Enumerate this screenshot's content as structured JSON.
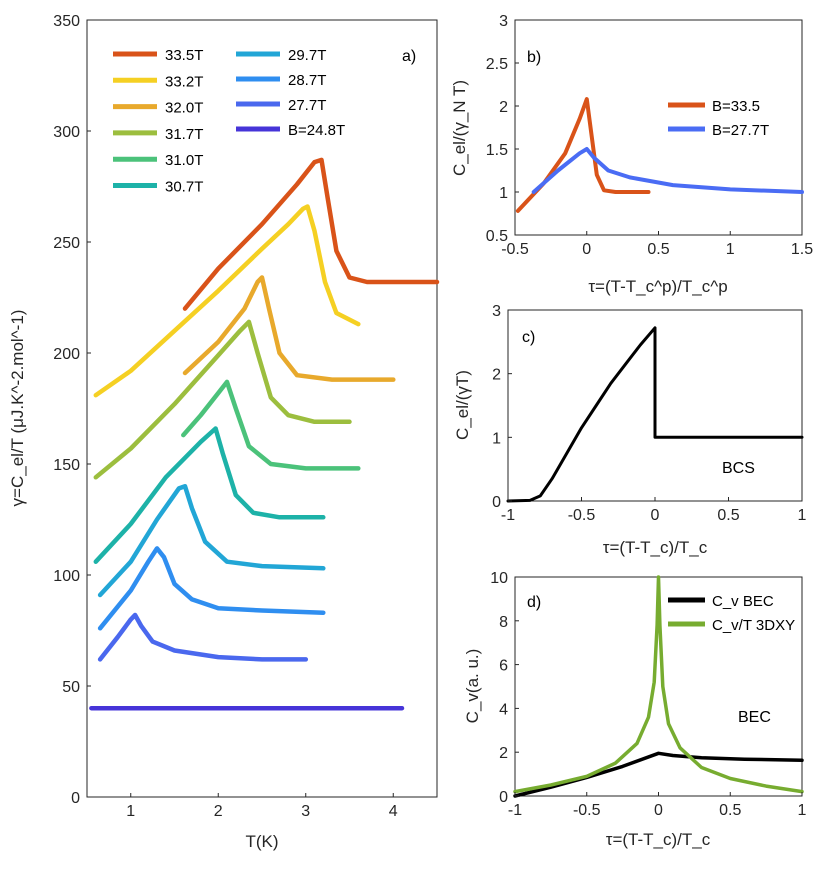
{
  "chart_data": [
    {
      "id": "a",
      "type": "line",
      "panel_label": "a)",
      "xlabel": "T(K)",
      "ylabel": "γ=C_el/T (μJ.K^-2.mol^-1)",
      "xlim": [
        0.5,
        4.5
      ],
      "ylim": [
        0,
        350
      ],
      "xticks": [
        1,
        2,
        3,
        4
      ],
      "yticks": [
        0,
        50,
        100,
        150,
        200,
        250,
        300,
        350
      ],
      "series": [
        {
          "name": "33.5T",
          "color": "#d95319",
          "points": [
            [
              1.62,
              220
            ],
            [
              2.0,
              238
            ],
            [
              2.5,
              258
            ],
            [
              2.9,
              276
            ],
            [
              3.1,
              286
            ],
            [
              3.18,
              287
            ],
            [
              3.25,
              270
            ],
            [
              3.35,
              246
            ],
            [
              3.5,
              234
            ],
            [
              3.7,
              232
            ],
            [
              4.0,
              232
            ],
            [
              4.5,
              232
            ]
          ]
        },
        {
          "name": "33.2T",
          "color": "#f5d023",
          "points": [
            [
              0.6,
              181
            ],
            [
              1.0,
              192
            ],
            [
              1.5,
              210
            ],
            [
              2.0,
              228
            ],
            [
              2.5,
              247
            ],
            [
              2.8,
              258
            ],
            [
              2.97,
              265
            ],
            [
              3.02,
              266
            ],
            [
              3.1,
              255
            ],
            [
              3.22,
              232
            ],
            [
              3.35,
              218
            ],
            [
              3.6,
              213
            ]
          ]
        },
        {
          "name": "32.0T",
          "color": "#e8a92c",
          "points": [
            [
              1.62,
              191
            ],
            [
              2.0,
              205
            ],
            [
              2.3,
              220
            ],
            [
              2.45,
              232
            ],
            [
              2.5,
              234
            ],
            [
              2.58,
              220
            ],
            [
              2.7,
              200
            ],
            [
              2.9,
              190
            ],
            [
              3.3,
              188
            ],
            [
              3.7,
              188
            ],
            [
              4.0,
              188
            ]
          ]
        },
        {
          "name": "31.7T",
          "color": "#9cbe3e",
          "points": [
            [
              0.6,
              144
            ],
            [
              1.0,
              157
            ],
            [
              1.5,
              177
            ],
            [
              2.0,
              199
            ],
            [
              2.25,
              210
            ],
            [
              2.35,
              214
            ],
            [
              2.45,
              200
            ],
            [
              2.6,
              180
            ],
            [
              2.8,
              172
            ],
            [
              3.1,
              169
            ],
            [
              3.5,
              169
            ]
          ]
        },
        {
          "name": "31.0T",
          "color": "#4bc27a",
          "points": [
            [
              1.6,
              163
            ],
            [
              1.8,
              172
            ],
            [
              2.0,
              182
            ],
            [
              2.1,
              187
            ],
            [
              2.2,
              175
            ],
            [
              2.35,
              158
            ],
            [
              2.6,
              150
            ],
            [
              3.0,
              148
            ],
            [
              3.6,
              148
            ]
          ]
        },
        {
          "name": "30.7T",
          "color": "#1db2a8",
          "points": [
            [
              0.6,
              106
            ],
            [
              1.0,
              123
            ],
            [
              1.4,
              144
            ],
            [
              1.8,
              160
            ],
            [
              1.97,
              166
            ],
            [
              2.05,
              155
            ],
            [
              2.2,
              136
            ],
            [
              2.4,
              128
            ],
            [
              2.7,
              126
            ],
            [
              3.2,
              126
            ]
          ]
        },
        {
          "name": "29.7T",
          "color": "#22a6d6",
          "points": [
            [
              0.65,
              91
            ],
            [
              1.0,
              106
            ],
            [
              1.3,
              125
            ],
            [
              1.55,
              139
            ],
            [
              1.62,
              140
            ],
            [
              1.7,
              130
            ],
            [
              1.85,
              115
            ],
            [
              2.1,
              106
            ],
            [
              2.5,
              104
            ],
            [
              3.2,
              103
            ]
          ]
        },
        {
          "name": "28.7T",
          "color": "#2f8ef0",
          "points": [
            [
              0.65,
              76
            ],
            [
              1.0,
              93
            ],
            [
              1.2,
              106
            ],
            [
              1.3,
              112
            ],
            [
              1.38,
              108
            ],
            [
              1.5,
              96
            ],
            [
              1.7,
              89
            ],
            [
              2.0,
              85
            ],
            [
              2.5,
              84
            ],
            [
              3.2,
              83
            ]
          ]
        },
        {
          "name": "27.7T",
          "color": "#4a68ee",
          "points": [
            [
              0.65,
              62
            ],
            [
              0.85,
              72
            ],
            [
              1.0,
              80
            ],
            [
              1.05,
              82
            ],
            [
              1.12,
              77
            ],
            [
              1.25,
              70
            ],
            [
              1.5,
              66
            ],
            [
              2.0,
              63
            ],
            [
              2.5,
              62
            ],
            [
              3.0,
              62
            ]
          ]
        },
        {
          "name": "B=24.8T",
          "color": "#4634d8",
          "points": [
            [
              0.55,
              40
            ],
            [
              1.0,
              40
            ],
            [
              2.0,
              40
            ],
            [
              3.0,
              40
            ],
            [
              4.1,
              40
            ]
          ]
        }
      ]
    },
    {
      "id": "b",
      "type": "line",
      "panel_label": "b)",
      "xlabel": "τ=(T-T_c^p)/T_c^p",
      "ylabel": "C_el/(γ_N T)",
      "xlim": [
        -0.5,
        1.5
      ],
      "ylim": [
        0.5,
        3
      ],
      "xticks": [
        -0.5,
        0,
        0.5,
        1,
        1.5
      ],
      "yticks": [
        0.5,
        1,
        1.5,
        2,
        2.5,
        3
      ],
      "series": [
        {
          "name": "B=33.5",
          "color": "#d95319",
          "points": [
            [
              -0.48,
              0.78
            ],
            [
              -0.3,
              1.1
            ],
            [
              -0.15,
              1.45
            ],
            [
              -0.05,
              1.85
            ],
            [
              0.0,
              2.08
            ],
            [
              0.03,
              1.7
            ],
            [
              0.07,
              1.2
            ],
            [
              0.12,
              1.02
            ],
            [
              0.2,
              1.0
            ],
            [
              0.43,
              1.0
            ]
          ]
        },
        {
          "name": "B=27.7T",
          "color": "#4a6cf4",
          "points": [
            [
              -0.37,
              1.0
            ],
            [
              -0.2,
              1.25
            ],
            [
              -0.05,
              1.45
            ],
            [
              0.0,
              1.5
            ],
            [
              0.05,
              1.4
            ],
            [
              0.15,
              1.25
            ],
            [
              0.3,
              1.17
            ],
            [
              0.6,
              1.08
            ],
            [
              1.0,
              1.03
            ],
            [
              1.5,
              1.0
            ]
          ]
        }
      ]
    },
    {
      "id": "c",
      "type": "line",
      "panel_label": "c)",
      "annotation": "BCS",
      "xlabel": "τ=(T-T_c)/T_c",
      "ylabel": "C_el/(γT)",
      "xlim": [
        -1,
        1
      ],
      "ylim": [
        0,
        3
      ],
      "xticks": [
        -1,
        -0.5,
        0,
        0.5,
        1
      ],
      "yticks": [
        0,
        1,
        2,
        3
      ],
      "series": [
        {
          "name": "BCS",
          "color": "#000000",
          "points": [
            [
              -1,
              0
            ],
            [
              -0.85,
              0.01
            ],
            [
              -0.78,
              0.08
            ],
            [
              -0.7,
              0.35
            ],
            [
              -0.6,
              0.75
            ],
            [
              -0.5,
              1.15
            ],
            [
              -0.4,
              1.5
            ],
            [
              -0.3,
              1.85
            ],
            [
              -0.2,
              2.15
            ],
            [
              -0.1,
              2.45
            ],
            [
              0.0,
              2.72
            ],
            [
              0.0,
              1.0
            ],
            [
              1.0,
              1.0
            ]
          ]
        }
      ]
    },
    {
      "id": "d",
      "type": "line",
      "panel_label": "d)",
      "annotation": "BEC",
      "xlabel": "τ=(T-T_c)/T_c",
      "ylabel": "C_v(a. u.)",
      "xlim": [
        -1,
        1
      ],
      "ylim": [
        0,
        10
      ],
      "xticks": [
        -1,
        -0.5,
        0,
        0.5,
        1
      ],
      "yticks": [
        0,
        2,
        4,
        6,
        8,
        10
      ],
      "series": [
        {
          "name": "C_v BEC",
          "color": "#000000",
          "points": [
            [
              -1,
              0.0
            ],
            [
              -0.75,
              0.4
            ],
            [
              -0.5,
              0.85
            ],
            [
              -0.25,
              1.35
            ],
            [
              0.0,
              1.95
            ],
            [
              0.1,
              1.85
            ],
            [
              0.3,
              1.75
            ],
            [
              0.6,
              1.68
            ],
            [
              1.0,
              1.63
            ]
          ]
        },
        {
          "name": "C_v/T 3DXY",
          "color": "#77ac30",
          "points": [
            [
              -1,
              0.2
            ],
            [
              -0.75,
              0.5
            ],
            [
              -0.5,
              0.9
            ],
            [
              -0.3,
              1.5
            ],
            [
              -0.15,
              2.4
            ],
            [
              -0.07,
              3.6
            ],
            [
              -0.03,
              5.2
            ],
            [
              -0.01,
              7.8
            ],
            [
              0.0,
              10.0
            ],
            [
              0.01,
              7.8
            ],
            [
              0.03,
              5.0
            ],
            [
              0.07,
              3.3
            ],
            [
              0.15,
              2.2
            ],
            [
              0.3,
              1.3
            ],
            [
              0.5,
              0.8
            ],
            [
              0.75,
              0.45
            ],
            [
              1.0,
              0.2
            ]
          ]
        }
      ]
    }
  ]
}
